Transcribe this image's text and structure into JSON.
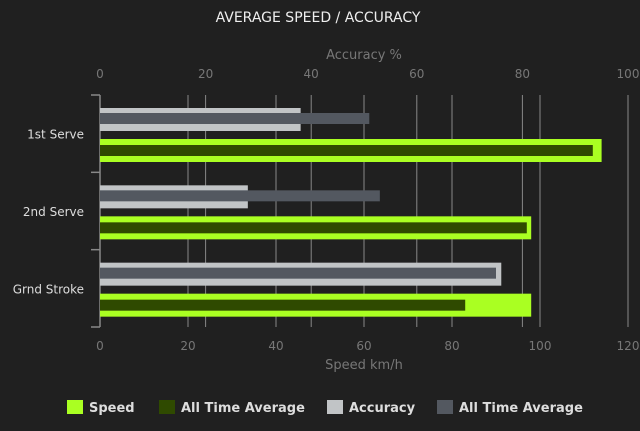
{
  "chart_data": {
    "type": "bar",
    "orientation": "horizontal",
    "title": "AVERAGE SPEED / ACCURACY",
    "categories": [
      "1st Serve",
      "2nd Serve",
      "Grnd Stroke"
    ],
    "speed_axis": {
      "label": "Speed km/h",
      "position": "bottom",
      "range": [
        0,
        120
      ],
      "ticks": [
        "0",
        "20",
        "40",
        "60",
        "80",
        "100",
        "120"
      ]
    },
    "accuracy_axis": {
      "label": "Accuracy %",
      "position": "top",
      "range": [
        0,
        100
      ],
      "ticks": [
        "0",
        "20",
        "40",
        "60",
        "80",
        "100"
      ]
    },
    "grid": true,
    "legend_position": "bottom",
    "series": [
      {
        "name": "Speed",
        "axis": "speed",
        "color": "#aaff22",
        "values": [
          114,
          98,
          98
        ]
      },
      {
        "name": "All Time Average",
        "axis": "speed",
        "color": "#2f4a00",
        "values": [
          112,
          97,
          83
        ]
      },
      {
        "name": "Accuracy",
        "axis": "accuracy",
        "color": "#c1c4c6",
        "values": [
          38,
          28,
          76
        ]
      },
      {
        "name": "All Time Average",
        "axis": "accuracy",
        "color": "#535860",
        "values": [
          51,
          53,
          75
        ]
      }
    ]
  }
}
